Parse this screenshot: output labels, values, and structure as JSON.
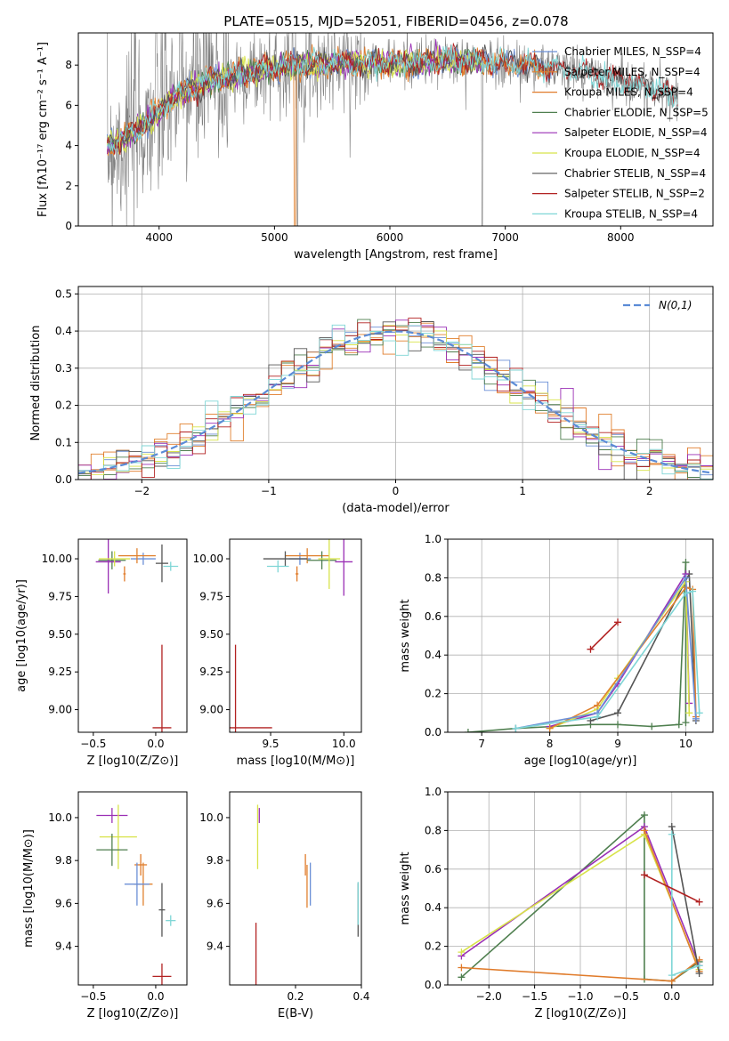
{
  "figure": {
    "title": "PLATE=0515, MJD=52051, FIBERID=0456, z=0.078"
  },
  "colors": {
    "Chabrier MILES": "#6b8fd6",
    "Salpeter MILES": "#e0812f",
    "Kroupa MILES": "#e07b2a",
    "Chabrier ELODIE": "#4f7f4f",
    "Salpeter ELODIE": "#9a2fb5",
    "Kroupa ELODIE": "#d8e34a",
    "Chabrier STELIB": "#555555",
    "Salpeter STELIB": "#b22222",
    "Kroupa STELIB": "#7fd6d6",
    "data": "#808080",
    "normal": "#5b8bd6"
  },
  "chart_data": [
    {
      "id": "spectrum",
      "type": "line",
      "xlabel": "wavelength [Angstrom, rest frame]",
      "ylabel": "Flux [fλ10⁻¹⁷ erg cm⁻² s⁻¹ A⁻¹]",
      "xlim": [
        3300,
        8800
      ],
      "ylim": [
        0,
        9.6
      ],
      "xticks": [
        4000,
        5000,
        6000,
        7000,
        8000
      ],
      "yticks": [
        0,
        2,
        4,
        6,
        8
      ],
      "legend": "top-right",
      "legend_entries": [
        "Chabrier MILES, N_SSP=4",
        "Salpeter MILES, N_SSP=4",
        "Kroupa MILES, N_SSP=4",
        "Chabrier ELODIE, N_SSP=5",
        "Salpeter ELODIE, N_SSP=4",
        "Kroupa ELODIE, N_SSP=4",
        "Chabrier STELIB, N_SSP=4",
        "Salpeter STELIB, N_SSP=2",
        "Kroupa STELIB, N_SSP=4"
      ],
      "continuum": {
        "x": [
          3550,
          3700,
          3900,
          4100,
          4300,
          4500,
          4800,
          5000,
          5300,
          5600,
          6000,
          6400,
          6800,
          7200,
          7500,
          7800,
          8100,
          8300,
          8500
        ],
        "y": [
          4.0,
          4.3,
          5.2,
          6.3,
          6.9,
          7.3,
          7.6,
          7.9,
          8.0,
          8.1,
          8.1,
          8.2,
          8.2,
          8.0,
          7.8,
          7.5,
          7.1,
          6.8,
          6.4
        ]
      },
      "grid": false
    },
    {
      "id": "residuals",
      "type": "line",
      "xlabel": "(data-model)/error",
      "ylabel": "Normed distribution",
      "xlim": [
        -2.5,
        2.5
      ],
      "ylim": [
        0,
        0.52
      ],
      "xticks": [
        -2,
        -1,
        0,
        1,
        2
      ],
      "yticks": [
        0.0,
        0.1,
        0.2,
        0.3,
        0.4,
        0.5
      ],
      "legend_entry": "N(0,1)",
      "legend": "top-right",
      "grid": true
    },
    {
      "id": "age-vs-Z",
      "type": "scatter",
      "xlabel": "Z [log10(Z/Z⊙)]",
      "ylabel": "age [log10(age/yr)]",
      "xlim": [
        -0.62,
        0.25
      ],
      "ylim": [
        8.85,
        10.13
      ],
      "xticks": [
        -0.5,
        0.0
      ],
      "yticks": [
        9.0,
        9.25,
        9.5,
        9.75,
        10.0
      ],
      "points": [
        {
          "c": "Chabrier MILES",
          "x": -0.1,
          "y": 10.0,
          "dx": 0.2,
          "dy": 0.08
        },
        {
          "c": "Salpeter MILES",
          "x": -0.15,
          "y": 10.02,
          "dx": 0.3,
          "dy": 0.1
        },
        {
          "c": "Chabrier ELODIE",
          "x": -0.35,
          "y": 9.99,
          "dx": 0.22,
          "dy": 0.12
        },
        {
          "c": "Salpeter ELODIE",
          "x": -0.38,
          "y": 9.98,
          "dx": 0.2,
          "dy": 0.42
        },
        {
          "c": "Kroupa ELODIE",
          "x": -0.33,
          "y": 10.0,
          "dx": 0.25,
          "dy": 0.1
        },
        {
          "c": "Chabrier STELIB",
          "x": 0.05,
          "y": 9.97,
          "dx": 0.1,
          "dy": 0.25
        },
        {
          "c": "Salpeter STELIB",
          "x": 0.05,
          "y": 8.88,
          "dx": 0.15,
          "dy": 1.1
        },
        {
          "c": "Kroupa STELIB",
          "x": 0.12,
          "y": 9.95,
          "dx": 0.12,
          "dy": 0.06
        },
        {
          "c": "Kroupa MILES",
          "x": -0.25,
          "y": 9.9,
          "dx": 0.02,
          "dy": 0.1
        }
      ]
    },
    {
      "id": "age-vs-mass",
      "type": "scatter",
      "xlabel": "mass [log10(M/M⊙)]",
      "xlim": [
        9.22,
        10.12
      ],
      "ylim": [
        8.85,
        10.13
      ],
      "xticks": [
        9.5,
        10.0
      ],
      "yticks": [
        9.0,
        9.25,
        9.5,
        9.75,
        10.0
      ],
      "points": [
        {
          "c": "Chabrier MILES",
          "x": 9.7,
          "y": 10.0,
          "dx": 0.15,
          "dy": 0.08
        },
        {
          "c": "Salpeter MILES",
          "x": 9.75,
          "y": 10.02,
          "dx": 0.3,
          "dy": 0.1
        },
        {
          "c": "Chabrier ELODIE",
          "x": 9.85,
          "y": 9.99,
          "dx": 0.2,
          "dy": 0.12
        },
        {
          "c": "Salpeter ELODIE",
          "x": 10.0,
          "y": 9.98,
          "dx": 0.12,
          "dy": 0.45
        },
        {
          "c": "Kroupa ELODIE",
          "x": 9.9,
          "y": 10.0,
          "dx": 0.15,
          "dy": 0.4
        },
        {
          "c": "Chabrier STELIB",
          "x": 9.6,
          "y": 10.0,
          "dx": 0.3,
          "dy": 0.1
        },
        {
          "c": "Salpeter STELIB",
          "x": 9.26,
          "y": 8.88,
          "dx": 0.5,
          "dy": 1.1
        },
        {
          "c": "Kroupa STELIB",
          "x": 9.55,
          "y": 9.95,
          "dx": 0.15,
          "dy": 0.08
        },
        {
          "c": "Kroupa MILES",
          "x": 9.68,
          "y": 9.9,
          "dx": 0.02,
          "dy": 0.1
        }
      ]
    },
    {
      "id": "weight-vs-age",
      "type": "line",
      "xlabel": "age [log10(age/yr)]",
      "ylabel": "mass weight",
      "xlim": [
        6.5,
        10.4
      ],
      "ylim": [
        0,
        1.0
      ],
      "xticks": [
        7,
        8,
        9,
        10
      ],
      "yticks": [
        0.0,
        0.2,
        0.4,
        0.6,
        0.8,
        1.0
      ],
      "grid": true,
      "series": [
        {
          "c": "Chabrier ELODIE",
          "x": [
            6.8,
            7.5,
            8.6,
            9.0,
            9.5,
            9.9,
            10.0,
            10.0
          ],
          "y": [
            0.0,
            0.02,
            0.04,
            0.04,
            0.03,
            0.04,
            0.88,
            0.05
          ]
        },
        {
          "c": "Chabrier STELIB",
          "x": [
            8.6,
            9.0,
            10.05,
            10.15
          ],
          "y": [
            0.06,
            0.1,
            0.82,
            0.06
          ]
        },
        {
          "c": "Salpeter ELODIE",
          "x": [
            8.0,
            8.7,
            9.0,
            10.0,
            10.05
          ],
          "y": [
            0.03,
            0.1,
            0.25,
            0.82,
            0.15
          ]
        },
        {
          "c": "Kroupa ELODIE",
          "x": [
            8.0,
            8.7,
            9.0,
            10.0,
            10.05
          ],
          "y": [
            0.02,
            0.12,
            0.28,
            0.78,
            0.1
          ]
        },
        {
          "c": "Salpeter MILES",
          "x": [
            8.0,
            8.7,
            10.0,
            10.1,
            10.15
          ],
          "y": [
            0.02,
            0.14,
            0.75,
            0.74,
            0.08
          ]
        },
        {
          "c": "Chabrier MILES",
          "x": [
            7.5,
            8.7,
            10.0,
            10.15
          ],
          "y": [
            0.02,
            0.1,
            0.8,
            0.07
          ]
        },
        {
          "c": "Kroupa STELIB",
          "x": [
            7.5,
            8.7,
            10.0,
            10.1,
            10.2
          ],
          "y": [
            0.02,
            0.08,
            0.72,
            0.73,
            0.1
          ]
        },
        {
          "c": "Salpeter STELIB",
          "x": [
            8.6,
            9.0
          ],
          "y": [
            0.43,
            0.57
          ]
        }
      ]
    },
    {
      "id": "mass-vs-Z",
      "type": "scatter",
      "xlabel": "Z [log10(Z/Z⊙)]",
      "ylabel": "mass [log10(M/M⊙)]",
      "xlim": [
        -0.62,
        0.25
      ],
      "ylim": [
        9.22,
        10.12
      ],
      "xticks": [
        -0.5,
        0.0
      ],
      "yticks": [
        9.4,
        9.6,
        9.8,
        10.0
      ],
      "points": [
        {
          "c": "Salpeter ELODIE",
          "x": -0.35,
          "y": 10.01,
          "dx": 0.25,
          "dy": 0.07
        },
        {
          "c": "Kroupa ELODIE",
          "x": -0.3,
          "y": 9.91,
          "dx": 0.3,
          "dy": 0.3
        },
        {
          "c": "Chabrier ELODIE",
          "x": -0.35,
          "y": 9.85,
          "dx": 0.25,
          "dy": 0.15
        },
        {
          "c": "Kroupa MILES",
          "x": -0.12,
          "y": 9.78,
          "dx": 0.1,
          "dy": 0.1
        },
        {
          "c": "Salpeter MILES",
          "x": -0.1,
          "y": 9.69,
          "dx": 0.15,
          "dy": 0.2
        },
        {
          "c": "Chabrier MILES",
          "x": -0.15,
          "y": 9.69,
          "dx": 0.2,
          "dy": 0.2
        },
        {
          "c": "Chabrier STELIB",
          "x": 0.05,
          "y": 9.57,
          "dx": 0.05,
          "dy": 0.25
        },
        {
          "c": "Kroupa STELIB",
          "x": 0.12,
          "y": 9.52,
          "dx": 0.08,
          "dy": 0.05
        },
        {
          "c": "Salpeter STELIB",
          "x": 0.05,
          "y": 9.26,
          "dx": 0.15,
          "dy": 0.12
        }
      ]
    },
    {
      "id": "mass-vs-EBV",
      "type": "scatter",
      "xlabel": "E(B-V)",
      "xlim": [
        0.0,
        0.4
      ],
      "ylim": [
        9.22,
        10.12
      ],
      "xticks": [
        0.2,
        0.4
      ],
      "yticks": [
        9.4,
        9.6,
        9.8,
        10.0
      ],
      "points": [
        {
          "c": "Salpeter STELIB",
          "x": 0.08,
          "y": 9.26,
          "dx": 0.0,
          "dy": 0.5
        },
        {
          "c": "Salpeter ELODIE",
          "x": 0.09,
          "y": 10.01,
          "dx": 0.0,
          "dy": 0.07
        },
        {
          "c": "Kroupa ELODIE",
          "x": 0.085,
          "y": 9.91,
          "dx": 0.0,
          "dy": 0.3
        },
        {
          "c": "Kroupa MILES",
          "x": 0.23,
          "y": 9.78,
          "dx": 0.0,
          "dy": 0.1
        },
        {
          "c": "Salpeter MILES",
          "x": 0.235,
          "y": 9.68,
          "dx": 0.0,
          "dy": 0.2
        },
        {
          "c": "Chabrier MILES",
          "x": 0.245,
          "y": 9.69,
          "dx": 0.0,
          "dy": 0.2
        },
        {
          "c": "Chabrier STELIB",
          "x": 0.39,
          "y": 9.57,
          "dx": 0.0,
          "dy": 0.25
        },
        {
          "c": "Kroupa STELIB",
          "x": 0.39,
          "y": 9.6,
          "dx": 0.0,
          "dy": 0.2
        }
      ]
    },
    {
      "id": "weight-vs-Z",
      "type": "line",
      "xlabel": "Z [log10(Z/Z⊙)]",
      "ylabel": "mass weight",
      "xlim": [
        -2.45,
        0.45
      ],
      "ylim": [
        0,
        1.0
      ],
      "xticks": [
        -2.0,
        -1.5,
        -1.0,
        -0.5,
        0.0
      ],
      "yticks": [
        0.0,
        0.2,
        0.4,
        0.6,
        0.8,
        1.0
      ],
      "grid": true,
      "series": [
        {
          "c": "Chabrier ELODIE",
          "x": [
            -2.3,
            -0.3,
            -0.3,
            0.0,
            0.3
          ],
          "y": [
            0.04,
            0.88,
            0.03,
            0.02,
            0.12
          ]
        },
        {
          "c": "Salpeter ELODIE",
          "x": [
            -2.3,
            -0.3,
            0.3
          ],
          "y": [
            0.15,
            0.82,
            0.1
          ]
        },
        {
          "c": "Kroupa ELODIE",
          "x": [
            -2.3,
            -0.3,
            0.3
          ],
          "y": [
            0.17,
            0.78,
            0.08
          ]
        },
        {
          "c": "Kroupa MILES",
          "x": [
            -2.3,
            0.0,
            0.3
          ],
          "y": [
            0.09,
            0.02,
            0.13
          ]
        },
        {
          "c": "Salpeter MILES",
          "x": [
            -0.3,
            0.3
          ],
          "y": [
            0.8,
            0.07
          ]
        },
        {
          "c": "Chabrier STELIB",
          "x": [
            0.0,
            0.3
          ],
          "y": [
            0.82,
            0.06
          ]
        },
        {
          "c": "Kroupa STELIB",
          "x": [
            0.0,
            0.0,
            0.3
          ],
          "y": [
            0.78,
            0.05,
            0.1
          ]
        },
        {
          "c": "Salpeter STELIB",
          "x": [
            -0.3,
            0.3
          ],
          "y": [
            0.57,
            0.43
          ]
        }
      ]
    }
  ]
}
